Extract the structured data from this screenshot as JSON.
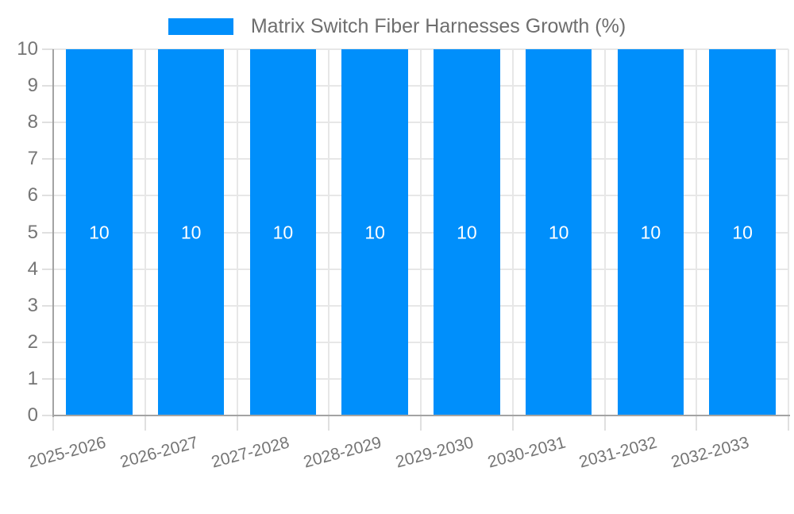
{
  "legend": {
    "label": "Matrix Switch Fiber Harnesses Growth (%)",
    "swatch_color": "#008FFB"
  },
  "chart_data": {
    "type": "bar",
    "title": "Matrix Switch Fiber Harnesses Growth (%)",
    "categories": [
      "2025-2026",
      "2026-2027",
      "2027-2028",
      "2028-2029",
      "2029-2030",
      "2030-2031",
      "2031-2032",
      "2032-2033"
    ],
    "values": [
      10,
      10,
      10,
      10,
      10,
      10,
      10,
      10
    ],
    "xlabel": "",
    "ylabel": "",
    "ylim": [
      0,
      10
    ],
    "yticks": [
      0,
      1,
      2,
      3,
      4,
      5,
      6,
      7,
      8,
      9,
      10
    ],
    "grid": true,
    "legend_position": "top",
    "bar_color": "#008FFB",
    "data_label_color": "#ffffff",
    "label_color": "#757575",
    "legend_text_color": "#6e6e6e",
    "grid_color": "#e7e7e7",
    "tick_color": "#e0e0e0",
    "axis_color": "#a3a3a3"
  }
}
